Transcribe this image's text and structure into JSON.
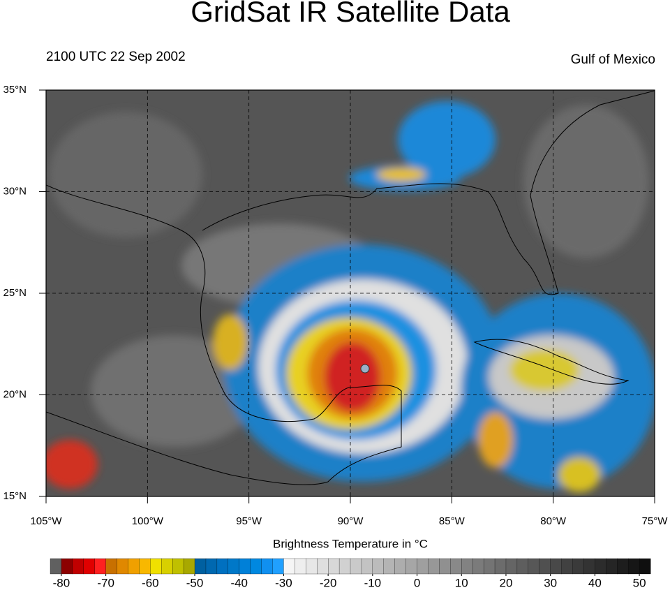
{
  "title": "GridSat IR Satellite Data",
  "subtitle_left": "2100 UTC 22 Sep 2002",
  "subtitle_right": "Gulf of Mexico",
  "map": {
    "xlim": [
      -105,
      -75
    ],
    "ylim": [
      15,
      35
    ],
    "grid": true,
    "xticks": [
      {
        "value": -105,
        "label": "105°W"
      },
      {
        "value": -100,
        "label": "100°W"
      },
      {
        "value": -95,
        "label": "95°W"
      },
      {
        "value": -90,
        "label": "90°W"
      },
      {
        "value": -85,
        "label": "85°W"
      },
      {
        "value": -80,
        "label": "80°W"
      },
      {
        "value": -75,
        "label": "75°W"
      }
    ],
    "yticks": [
      {
        "value": 15,
        "label": "15°N"
      },
      {
        "value": 20,
        "label": "20°N"
      },
      {
        "value": 25,
        "label": "25°N"
      },
      {
        "value": 30,
        "label": "30°N"
      },
      {
        "value": 35,
        "label": "35°N"
      }
    ]
  },
  "colorbar": {
    "title": "Brightness Temperature in °C",
    "lim": [
      -82.5,
      52.5
    ],
    "ticks": [
      -80,
      -70,
      -60,
      -50,
      -40,
      -30,
      -20,
      -10,
      0,
      10,
      20,
      30,
      40,
      50
    ]
  }
}
